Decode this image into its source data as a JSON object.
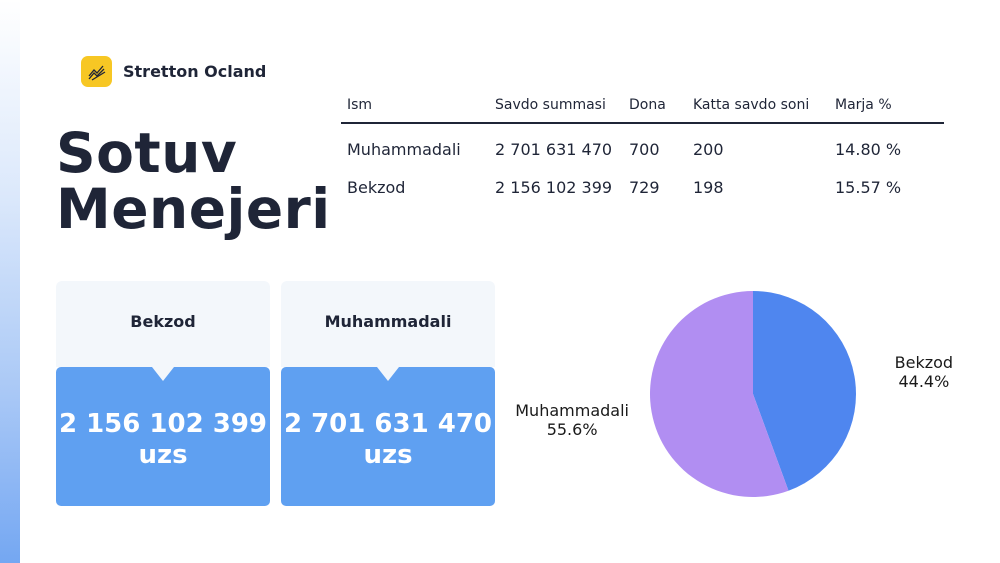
{
  "brand": {
    "name": "Stretton Ocland",
    "logo_icon": "chart-lines-icon",
    "logo_color": "#f7c724"
  },
  "title": {
    "line1": "Sotuv",
    "line2": "Menejeri"
  },
  "table": {
    "headers": [
      "Ism",
      "Savdo summasi",
      "Dona",
      "Katta savdo soni",
      "Marja %"
    ],
    "rows": [
      [
        "Muhammadali",
        "2 701 631 470",
        "700",
        "200",
        "14.80 %"
      ],
      [
        "Bekzod",
        "2 156 102 399",
        "729",
        "198",
        "15.57 %"
      ]
    ]
  },
  "cards": [
    {
      "name": "Bekzod",
      "value": "2 156 102 399",
      "unit": "uzs"
    },
    {
      "name": "Muhammadali",
      "value": "2 701 631 470",
      "unit": "uzs"
    }
  ],
  "colors": {
    "card_blue": "#5fa0f1",
    "card_head": "#f3f7fb",
    "text_dark": "#1f2537"
  },
  "chart_data": {
    "type": "pie",
    "title": "",
    "start_angle_deg": 90,
    "direction": "clockwise",
    "slices": [
      {
        "label": "Bekzod",
        "value": 44.4,
        "pct_label": "44.4%",
        "color": "#4f86ef"
      },
      {
        "label": "Muhammadali",
        "value": 55.6,
        "pct_label": "55.6%",
        "color": "#b18ef2"
      }
    ]
  }
}
